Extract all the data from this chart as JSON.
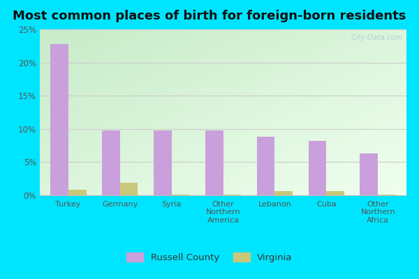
{
  "title": "Most common places of birth for foreign-born residents",
  "categories": [
    "Turkey",
    "Germany",
    "Syria",
    "Other\nNorthern\nAmerica",
    "Lebanon",
    "Cuba",
    "Other\nNorthern\nAfrica"
  ],
  "russell_county": [
    22.8,
    9.8,
    9.8,
    9.8,
    8.8,
    8.2,
    6.3
  ],
  "virginia": [
    0.8,
    1.9,
    0.1,
    0.1,
    0.6,
    0.6,
    0.1
  ],
  "russell_color": "#c9a0dc",
  "virginia_color": "#c8c87a",
  "outer_bg": "#00e5ff",
  "ylim": [
    0,
    25
  ],
  "yticks": [
    0,
    5,
    10,
    15,
    20,
    25
  ],
  "ytick_labels": [
    "0%",
    "5%",
    "10%",
    "15%",
    "20%",
    "25%"
  ],
  "bar_width": 0.35,
  "title_fontsize": 13,
  "legend_labels": [
    "Russell County",
    "Virginia"
  ],
  "watermark": "City-Data.com"
}
